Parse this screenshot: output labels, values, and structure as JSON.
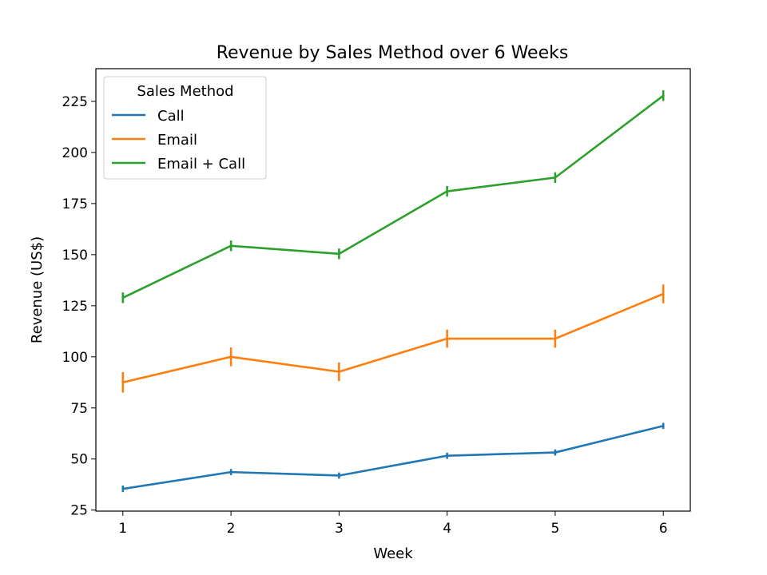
{
  "chart_data": {
    "type": "line",
    "title": "Revenue by Sales Method over 6 Weeks",
    "xlabel": "Week",
    "ylabel": "Revenue (US$)",
    "x": [
      1,
      2,
      3,
      4,
      5,
      6
    ],
    "xlim": [
      0.75,
      6.25
    ],
    "ylim": [
      24.5,
      241
    ],
    "yticks": [
      25,
      50,
      75,
      100,
      125,
      150,
      175,
      200,
      225
    ],
    "grid": false,
    "legend": {
      "title": "Sales Method",
      "placement": "top-left"
    },
    "series": [
      {
        "name": "Call",
        "color": "#1f77b4",
        "values": [
          35.4,
          43.6,
          41.9,
          51.6,
          53.2,
          66.2
        ],
        "errors": [
          1.6,
          1.5,
          1.5,
          1.5,
          1.5,
          1.5
        ]
      },
      {
        "name": "Email",
        "color": "#ff7f0e",
        "values": [
          87.5,
          100.0,
          92.7,
          108.9,
          108.9,
          130.8
        ],
        "errors": [
          5.0,
          4.6,
          4.6,
          4.4,
          4.4,
          4.6
        ]
      },
      {
        "name": "Email + Call",
        "color": "#2ca02c",
        "values": [
          128.9,
          154.3,
          150.4,
          181.0,
          187.7,
          227.8
        ],
        "errors": [
          2.6,
          2.6,
          2.6,
          2.6,
          2.6,
          2.6
        ]
      }
    ]
  }
}
